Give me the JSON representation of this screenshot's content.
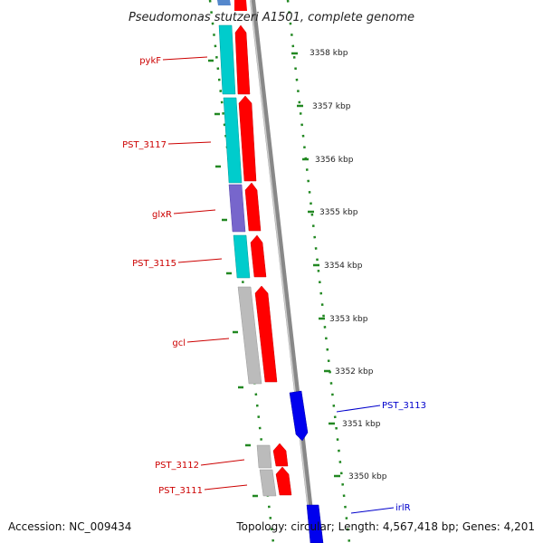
{
  "title": "Pseudomonas stutzeri A1501, complete genome",
  "footer": {
    "accession": "Accession: NC_009434",
    "topology": "Topology: circular; Length: 4,567,418 bp; Genes: 4,201"
  },
  "ruler_ticks": [
    {
      "label": "3358 kbp",
      "kbp": 3358
    },
    {
      "label": "3357 kbp",
      "kbp": 3357
    },
    {
      "label": "3356 kbp",
      "kbp": 3356
    },
    {
      "label": "3355 kbp",
      "kbp": 3355
    },
    {
      "label": "3354 kbp",
      "kbp": 3354
    },
    {
      "label": "3353 kbp",
      "kbp": 3353
    },
    {
      "label": "3352 kbp",
      "kbp": 3352
    },
    {
      "label": "3351 kbp",
      "kbp": 3351
    },
    {
      "label": "3350 kbp",
      "kbp": 3350
    }
  ],
  "genes": [
    {
      "name": "pykF",
      "strand": "reverse",
      "label_color": "#cc0000",
      "cds_color": "#ff0000",
      "track_color": "#00cccc"
    },
    {
      "name": "PST_3117",
      "strand": "reverse",
      "label_color": "#cc0000",
      "cds_color": "#ff0000",
      "track_color": "#00cccc"
    },
    {
      "name": "glxR",
      "strand": "reverse",
      "label_color": "#cc0000",
      "cds_color": "#ff0000",
      "track_color": "#7766cc"
    },
    {
      "name": "PST_3115",
      "strand": "reverse",
      "label_color": "#cc0000",
      "cds_color": "#ff0000",
      "track_color": "#00cccc"
    },
    {
      "name": "gcl",
      "strand": "reverse",
      "label_color": "#cc0000",
      "cds_color": "#ff0000",
      "track_color": "#bbbbbb"
    },
    {
      "name": "PST_3113",
      "strand": "forward",
      "label_color": "#0000cc",
      "cds_color": "#0000ee",
      "track_color": ""
    },
    {
      "name": "PST_3112",
      "strand": "reverse",
      "label_color": "#cc0000",
      "cds_color": "#ff0000",
      "track_color": "#bbbbbb"
    },
    {
      "name": "PST_3111",
      "strand": "reverse",
      "label_color": "#cc0000",
      "cds_color": "#ff0000",
      "track_color": "#bbbbbb"
    },
    {
      "name": "irlR",
      "strand": "forward",
      "label_color": "#0000cc",
      "cds_color": "#0000ee",
      "track_color": ""
    }
  ]
}
